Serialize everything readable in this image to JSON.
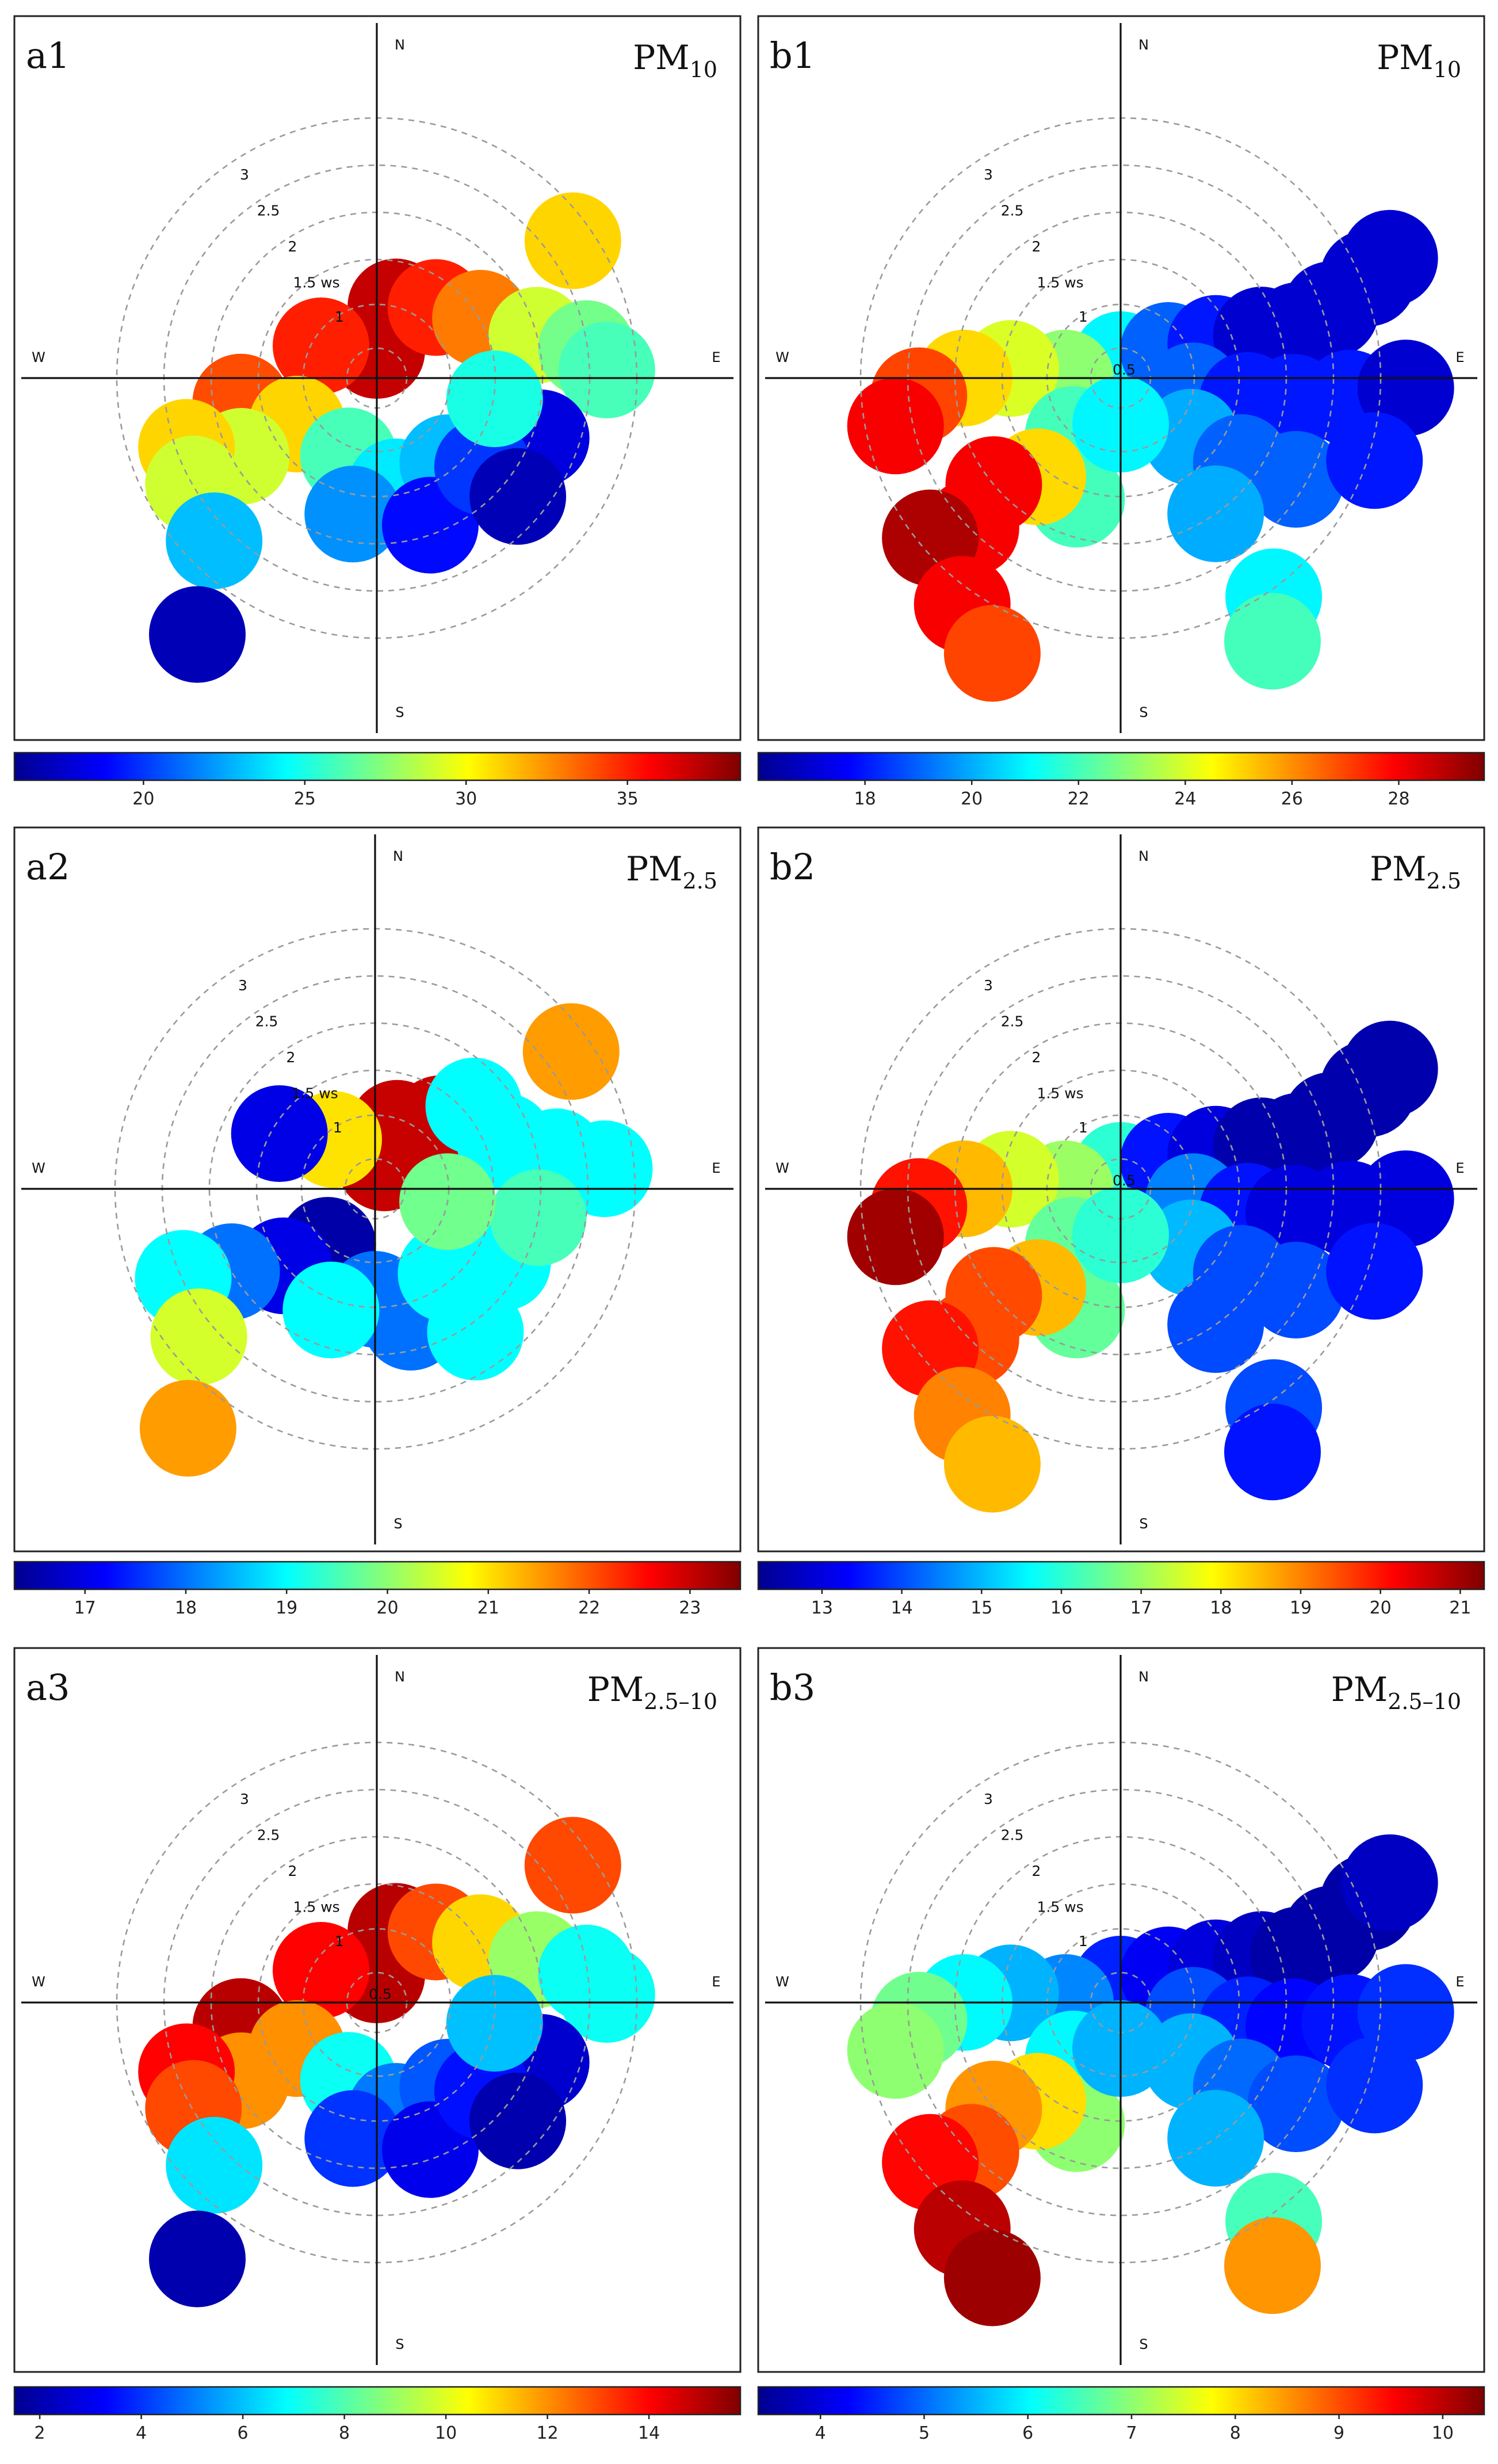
{
  "figure": {
    "description_free": true
  },
  "compass": {
    "north": "N",
    "south": "S",
    "east": "E",
    "west": "W"
  },
  "chart_data": [
    {
      "panel": "a1",
      "type": "heatmap",
      "title": "PM10",
      "title_main": "PM",
      "title_sub": "10",
      "radial_axis_label": "ws",
      "rings": [
        "0.5",
        "1",
        "1.5",
        "2",
        "2.5",
        "3"
      ],
      "show_inner_ring_label": false,
      "colorbar": {
        "range": [
          16,
          38.5
        ],
        "ticks": [
          20,
          25,
          30,
          35
        ]
      },
      "blobs": [
        {
          "ws": 0.3,
          "dir": 0,
          "value": 37
        },
        {
          "ws": 0.8,
          "dir": 15,
          "value": 37
        },
        {
          "ws": 1.0,
          "dir": 40,
          "value": 35
        },
        {
          "ws": 0.7,
          "dir": 300,
          "value": 35
        },
        {
          "ws": 1.3,
          "dir": 60,
          "value": 33
        },
        {
          "ws": 1.8,
          "dir": 75,
          "value": 29
        },
        {
          "ws": 2.3,
          "dir": 82,
          "value": 27
        },
        {
          "ws": 2.5,
          "dir": 88,
          "value": 26
        },
        {
          "ws": 2.6,
          "dir": 55,
          "value": 31
        },
        {
          "ws": 1.5,
          "dir": 260,
          "value": 34
        },
        {
          "ws": 1.0,
          "dir": 240,
          "value": 31
        },
        {
          "ws": 1.7,
          "dir": 240,
          "value": 29
        },
        {
          "ws": 2.2,
          "dir": 250,
          "value": 31
        },
        {
          "ws": 2.3,
          "dir": 240,
          "value": 29
        },
        {
          "ws": 2.5,
          "dir": 225,
          "value": 23
        },
        {
          "ws": 3.4,
          "dir": 215,
          "value": 17
        },
        {
          "ws": 0.9,
          "dir": 200,
          "value": 26
        },
        {
          "ws": 1.2,
          "dir": 170,
          "value": 24
        },
        {
          "ws": 1.5,
          "dir": 190,
          "value": 22
        },
        {
          "ws": 1.2,
          "dir": 140,
          "value": 23
        },
        {
          "ws": 1.7,
          "dir": 160,
          "value": 19
        },
        {
          "ws": 1.8,
          "dir": 125,
          "value": 19
        },
        {
          "ws": 1.9,
          "dir": 110,
          "value": 18
        },
        {
          "ws": 1.5,
          "dir": 130,
          "value": 20
        },
        {
          "ws": 1.3,
          "dir": 100,
          "value": 25
        },
        {
          "ws": 2.0,
          "dir": 130,
          "value": 17
        }
      ]
    },
    {
      "panel": "b1",
      "type": "heatmap",
      "title": "PM10",
      "title_main": "PM",
      "title_sub": "10",
      "radial_axis_label": "ws",
      "rings": [
        "0.5",
        "1",
        "1.5",
        "2",
        "2.5",
        "3"
      ],
      "show_inner_ring_label": true,
      "colorbar": {
        "range": [
          16,
          29.6
        ],
        "ticks": [
          18,
          20,
          22,
          24,
          26,
          28
        ]
      },
      "blobs": [
        {
          "ws": 0.2,
          "dir": 0,
          "value": 21
        },
        {
          "ws": 0.6,
          "dir": 60,
          "value": 19
        },
        {
          "ws": 1.1,
          "dir": 70,
          "value": 18
        },
        {
          "ws": 1.6,
          "dir": 73,
          "value": 17
        },
        {
          "ws": 2.0,
          "dir": 75,
          "value": 17
        },
        {
          "ws": 2.4,
          "dir": 72,
          "value": 17
        },
        {
          "ws": 2.9,
          "dir": 68,
          "value": 17
        },
        {
          "ws": 3.2,
          "dir": 66,
          "value": 17
        },
        {
          "ws": 0.8,
          "dir": 100,
          "value": 19
        },
        {
          "ws": 1.4,
          "dir": 100,
          "value": 18
        },
        {
          "ws": 1.9,
          "dir": 98,
          "value": 18
        },
        {
          "ws": 2.5,
          "dir": 95,
          "value": 18
        },
        {
          "ws": 3.1,
          "dir": 92,
          "value": 17
        },
        {
          "ws": 1.0,
          "dir": 130,
          "value": 20
        },
        {
          "ws": 1.6,
          "dir": 125,
          "value": 19
        },
        {
          "ws": 2.2,
          "dir": 120,
          "value": 19
        },
        {
          "ws": 2.9,
          "dir": 108,
          "value": 18
        },
        {
          "ws": 1.8,
          "dir": 145,
          "value": 20
        },
        {
          "ws": 2.9,
          "dir": 145,
          "value": 21
        },
        {
          "ws": 3.3,
          "dir": 150,
          "value": 22
        },
        {
          "ws": 0.6,
          "dir": 270,
          "value": 23
        },
        {
          "ws": 1.2,
          "dir": 275,
          "value": 24
        },
        {
          "ws": 1.7,
          "dir": 270,
          "value": 25
        },
        {
          "ws": 2.2,
          "dir": 265,
          "value": 27
        },
        {
          "ws": 2.5,
          "dir": 258,
          "value": 28
        },
        {
          "ws": 0.8,
          "dir": 220,
          "value": 22
        },
        {
          "ws": 1.4,
          "dir": 200,
          "value": 22
        },
        {
          "ws": 1.4,
          "dir": 220,
          "value": 25
        },
        {
          "ws": 1.8,
          "dir": 230,
          "value": 28
        },
        {
          "ws": 2.3,
          "dir": 225,
          "value": 28
        },
        {
          "ws": 2.7,
          "dir": 230,
          "value": 29
        },
        {
          "ws": 3.0,
          "dir": 215,
          "value": 28
        },
        {
          "ws": 3.3,
          "dir": 205,
          "value": 27
        },
        {
          "ws": 0.5,
          "dir": 180,
          "value": 21
        }
      ]
    },
    {
      "panel": "a2",
      "type": "heatmap",
      "title": "PM2.5",
      "title_main": "PM",
      "title_sub": "2.5",
      "radial_axis_label": "ws",
      "rings": [
        "0.5",
        "1",
        "1.5",
        "2",
        "2.5",
        "3"
      ],
      "show_inner_ring_label": false,
      "colorbar": {
        "range": [
          16.3,
          23.5
        ],
        "ticks": [
          17,
          18,
          19,
          20,
          21,
          22,
          23
        ]
      },
      "blobs": [
        {
          "ws": 0.3,
          "dir": 20,
          "value": 23
        },
        {
          "ws": 0.7,
          "dir": 20,
          "value": 23
        },
        {
          "ws": 1.0,
          "dir": 45,
          "value": 23
        },
        {
          "ws": 0.7,
          "dir": 320,
          "value": 21
        },
        {
          "ws": 1.4,
          "dir": 50,
          "value": 19
        },
        {
          "ws": 1.5,
          "dir": 70,
          "value": 19
        },
        {
          "ws": 2.0,
          "dir": 80,
          "value": 19
        },
        {
          "ws": 2.5,
          "dir": 85,
          "value": 19
        },
        {
          "ws": 2.6,
          "dir": 55,
          "value": 21.5
        },
        {
          "ws": 1.2,
          "dir": 300,
          "value": 17
        },
        {
          "ws": 0.8,
          "dir": 220,
          "value": 16.5
        },
        {
          "ws": 1.3,
          "dir": 230,
          "value": 17
        },
        {
          "ws": 1.8,
          "dir": 240,
          "value": 18
        },
        {
          "ws": 2.3,
          "dir": 245,
          "value": 19
        },
        {
          "ws": 2.5,
          "dir": 230,
          "value": 20.5
        },
        {
          "ws": 3.3,
          "dir": 218,
          "value": 21.5
        },
        {
          "ws": 1.2,
          "dir": 180,
          "value": 18
        },
        {
          "ws": 1.5,
          "dir": 165,
          "value": 18
        },
        {
          "ws": 1.2,
          "dir": 140,
          "value": 19
        },
        {
          "ws": 1.9,
          "dir": 145,
          "value": 19
        },
        {
          "ws": 1.6,
          "dir": 120,
          "value": 19
        },
        {
          "ws": 1.8,
          "dir": 100,
          "value": 19.5
        },
        {
          "ws": 0.8,
          "dir": 100,
          "value": 19.8
        },
        {
          "ws": 1.4,
          "dir": 200,
          "value": 19
        }
      ]
    },
    {
      "panel": "b2",
      "type": "heatmap",
      "title": "PM2.5",
      "title_main": "PM",
      "title_sub": "2.5",
      "radial_axis_label": "ws",
      "rings": [
        "0.5",
        "1",
        "1.5",
        "2",
        "2.5",
        "3"
      ],
      "show_inner_ring_label": true,
      "colorbar": {
        "range": [
          12.2,
          21.3
        ],
        "ticks": [
          13,
          14,
          15,
          16,
          17,
          18,
          19,
          20,
          21
        ]
      },
      "blobs": [
        {
          "ws": 0.2,
          "dir": 0,
          "value": 16
        },
        {
          "ws": 0.6,
          "dir": 60,
          "value": 13.5
        },
        {
          "ws": 1.1,
          "dir": 70,
          "value": 13
        },
        {
          "ws": 1.6,
          "dir": 73,
          "value": 12.5
        },
        {
          "ws": 2.0,
          "dir": 75,
          "value": 12.5
        },
        {
          "ws": 2.4,
          "dir": 72,
          "value": 12.5
        },
        {
          "ws": 2.9,
          "dir": 68,
          "value": 12.5
        },
        {
          "ws": 3.2,
          "dir": 66,
          "value": 12.5
        },
        {
          "ws": 0.8,
          "dir": 100,
          "value": 14.5
        },
        {
          "ws": 1.4,
          "dir": 100,
          "value": 13.5
        },
        {
          "ws": 1.9,
          "dir": 98,
          "value": 13
        },
        {
          "ws": 2.5,
          "dir": 95,
          "value": 13
        },
        {
          "ws": 3.1,
          "dir": 92,
          "value": 13
        },
        {
          "ws": 1.0,
          "dir": 130,
          "value": 15
        },
        {
          "ws": 1.6,
          "dir": 125,
          "value": 14
        },
        {
          "ws": 2.2,
          "dir": 120,
          "value": 14
        },
        {
          "ws": 2.9,
          "dir": 108,
          "value": 13.5
        },
        {
          "ws": 1.8,
          "dir": 145,
          "value": 14
        },
        {
          "ws": 2.9,
          "dir": 145,
          "value": 14
        },
        {
          "ws": 3.3,
          "dir": 150,
          "value": 13.5
        },
        {
          "ws": 0.6,
          "dir": 270,
          "value": 17
        },
        {
          "ws": 1.2,
          "dir": 275,
          "value": 17.5
        },
        {
          "ws": 1.7,
          "dir": 270,
          "value": 18.5
        },
        {
          "ws": 2.2,
          "dir": 265,
          "value": 20
        },
        {
          "ws": 2.5,
          "dir": 258,
          "value": 21
        },
        {
          "ws": 0.8,
          "dir": 220,
          "value": 16.5
        },
        {
          "ws": 1.4,
          "dir": 200,
          "value": 16.5
        },
        {
          "ws": 1.4,
          "dir": 220,
          "value": 18.5
        },
        {
          "ws": 1.8,
          "dir": 230,
          "value": 19.5
        },
        {
          "ws": 2.3,
          "dir": 225,
          "value": 19.5
        },
        {
          "ws": 2.7,
          "dir": 230,
          "value": 20
        },
        {
          "ws": 3.0,
          "dir": 215,
          "value": 19
        },
        {
          "ws": 3.3,
          "dir": 205,
          "value": 18.5
        },
        {
          "ws": 0.5,
          "dir": 180,
          "value": 16
        }
      ]
    },
    {
      "panel": "a3",
      "type": "heatmap",
      "title": "PM2.5–10",
      "title_main": "PM",
      "title_sub": "2.5–10",
      "radial_axis_label": "ws",
      "rings": [
        "0.5",
        "1",
        "1.5",
        "2",
        "2.5",
        "3"
      ],
      "show_inner_ring_label": true,
      "colorbar": {
        "range": [
          1.5,
          15.8
        ],
        "ticks": [
          2,
          4,
          6,
          8,
          10,
          12,
          14
        ]
      },
      "blobs": [
        {
          "ws": 0.3,
          "dir": 0,
          "value": 15
        },
        {
          "ws": 0.8,
          "dir": 15,
          "value": 15
        },
        {
          "ws": 1.0,
          "dir": 40,
          "value": 13
        },
        {
          "ws": 0.7,
          "dir": 300,
          "value": 14
        },
        {
          "ws": 1.3,
          "dir": 60,
          "value": 11
        },
        {
          "ws": 1.8,
          "dir": 75,
          "value": 9
        },
        {
          "ws": 2.3,
          "dir": 82,
          "value": 7
        },
        {
          "ws": 2.5,
          "dir": 88,
          "value": 7
        },
        {
          "ws": 2.6,
          "dir": 55,
          "value": 13
        },
        {
          "ws": 1.5,
          "dir": 260,
          "value": 15
        },
        {
          "ws": 1.0,
          "dir": 240,
          "value": 12
        },
        {
          "ws": 1.7,
          "dir": 240,
          "value": 12
        },
        {
          "ws": 2.2,
          "dir": 250,
          "value": 14
        },
        {
          "ws": 2.3,
          "dir": 240,
          "value": 13
        },
        {
          "ws": 2.5,
          "dir": 225,
          "value": 6.5
        },
        {
          "ws": 3.4,
          "dir": 215,
          "value": 2
        },
        {
          "ws": 0.9,
          "dir": 200,
          "value": 7
        },
        {
          "ws": 1.2,
          "dir": 170,
          "value": 5
        },
        {
          "ws": 1.5,
          "dir": 190,
          "value": 4
        },
        {
          "ws": 1.2,
          "dir": 140,
          "value": 4.5
        },
        {
          "ws": 1.7,
          "dir": 160,
          "value": 3
        },
        {
          "ws": 1.8,
          "dir": 125,
          "value": 3
        },
        {
          "ws": 1.9,
          "dir": 110,
          "value": 2.5
        },
        {
          "ws": 1.5,
          "dir": 130,
          "value": 3.5
        },
        {
          "ws": 1.3,
          "dir": 100,
          "value": 6
        },
        {
          "ws": 2.0,
          "dir": 130,
          "value": 2
        }
      ]
    },
    {
      "panel": "b3",
      "type": "heatmap",
      "title": "PM2.5–10",
      "title_main": "PM",
      "title_sub": "2.5–10",
      "radial_axis_label": "ws",
      "rings": [
        "0.5",
        "1",
        "1.5",
        "2",
        "2.5",
        "3"
      ],
      "show_inner_ring_label": false,
      "colorbar": {
        "range": [
          3.4,
          10.4
        ],
        "ticks": [
          4,
          5,
          6,
          7,
          8,
          9,
          10
        ]
      },
      "blobs": [
        {
          "ws": 0.2,
          "dir": 0,
          "value": 4.5
        },
        {
          "ws": 0.6,
          "dir": 60,
          "value": 4.2
        },
        {
          "ws": 1.1,
          "dir": 70,
          "value": 4
        },
        {
          "ws": 1.6,
          "dir": 73,
          "value": 3.8
        },
        {
          "ws": 2.0,
          "dir": 75,
          "value": 3.6
        },
        {
          "ws": 2.4,
          "dir": 72,
          "value": 3.6
        },
        {
          "ws": 2.9,
          "dir": 68,
          "value": 3.6
        },
        {
          "ws": 3.2,
          "dir": 66,
          "value": 3.8
        },
        {
          "ws": 0.8,
          "dir": 100,
          "value": 4.8
        },
        {
          "ws": 1.4,
          "dir": 100,
          "value": 4.5
        },
        {
          "ws": 1.9,
          "dir": 98,
          "value": 4.3
        },
        {
          "ws": 2.5,
          "dir": 95,
          "value": 4.4
        },
        {
          "ws": 3.1,
          "dir": 92,
          "value": 4.6
        },
        {
          "ws": 1.0,
          "dir": 130,
          "value": 5.5
        },
        {
          "ws": 1.6,
          "dir": 125,
          "value": 5
        },
        {
          "ws": 2.2,
          "dir": 120,
          "value": 4.8
        },
        {
          "ws": 2.9,
          "dir": 108,
          "value": 4.6
        },
        {
          "ws": 1.8,
          "dir": 145,
          "value": 5.5
        },
        {
          "ws": 2.9,
          "dir": 145,
          "value": 6.5
        },
        {
          "ws": 3.3,
          "dir": 150,
          "value": 8.5
        },
        {
          "ws": 0.6,
          "dir": 270,
          "value": 5.2
        },
        {
          "ws": 1.2,
          "dir": 275,
          "value": 5.5
        },
        {
          "ws": 1.7,
          "dir": 270,
          "value": 6
        },
        {
          "ws": 2.2,
          "dir": 265,
          "value": 6.8
        },
        {
          "ws": 2.5,
          "dir": 258,
          "value": 7
        },
        {
          "ws": 0.8,
          "dir": 220,
          "value": 6
        },
        {
          "ws": 1.4,
          "dir": 200,
          "value": 7
        },
        {
          "ws": 1.4,
          "dir": 220,
          "value": 8
        },
        {
          "ws": 1.8,
          "dir": 230,
          "value": 8.5
        },
        {
          "ws": 2.3,
          "dir": 225,
          "value": 9
        },
        {
          "ws": 2.7,
          "dir": 230,
          "value": 9.5
        },
        {
          "ws": 3.0,
          "dir": 215,
          "value": 10
        },
        {
          "ws": 3.3,
          "dir": 205,
          "value": 10.2
        },
        {
          "ws": 0.5,
          "dir": 180,
          "value": 5.5
        }
      ]
    }
  ]
}
